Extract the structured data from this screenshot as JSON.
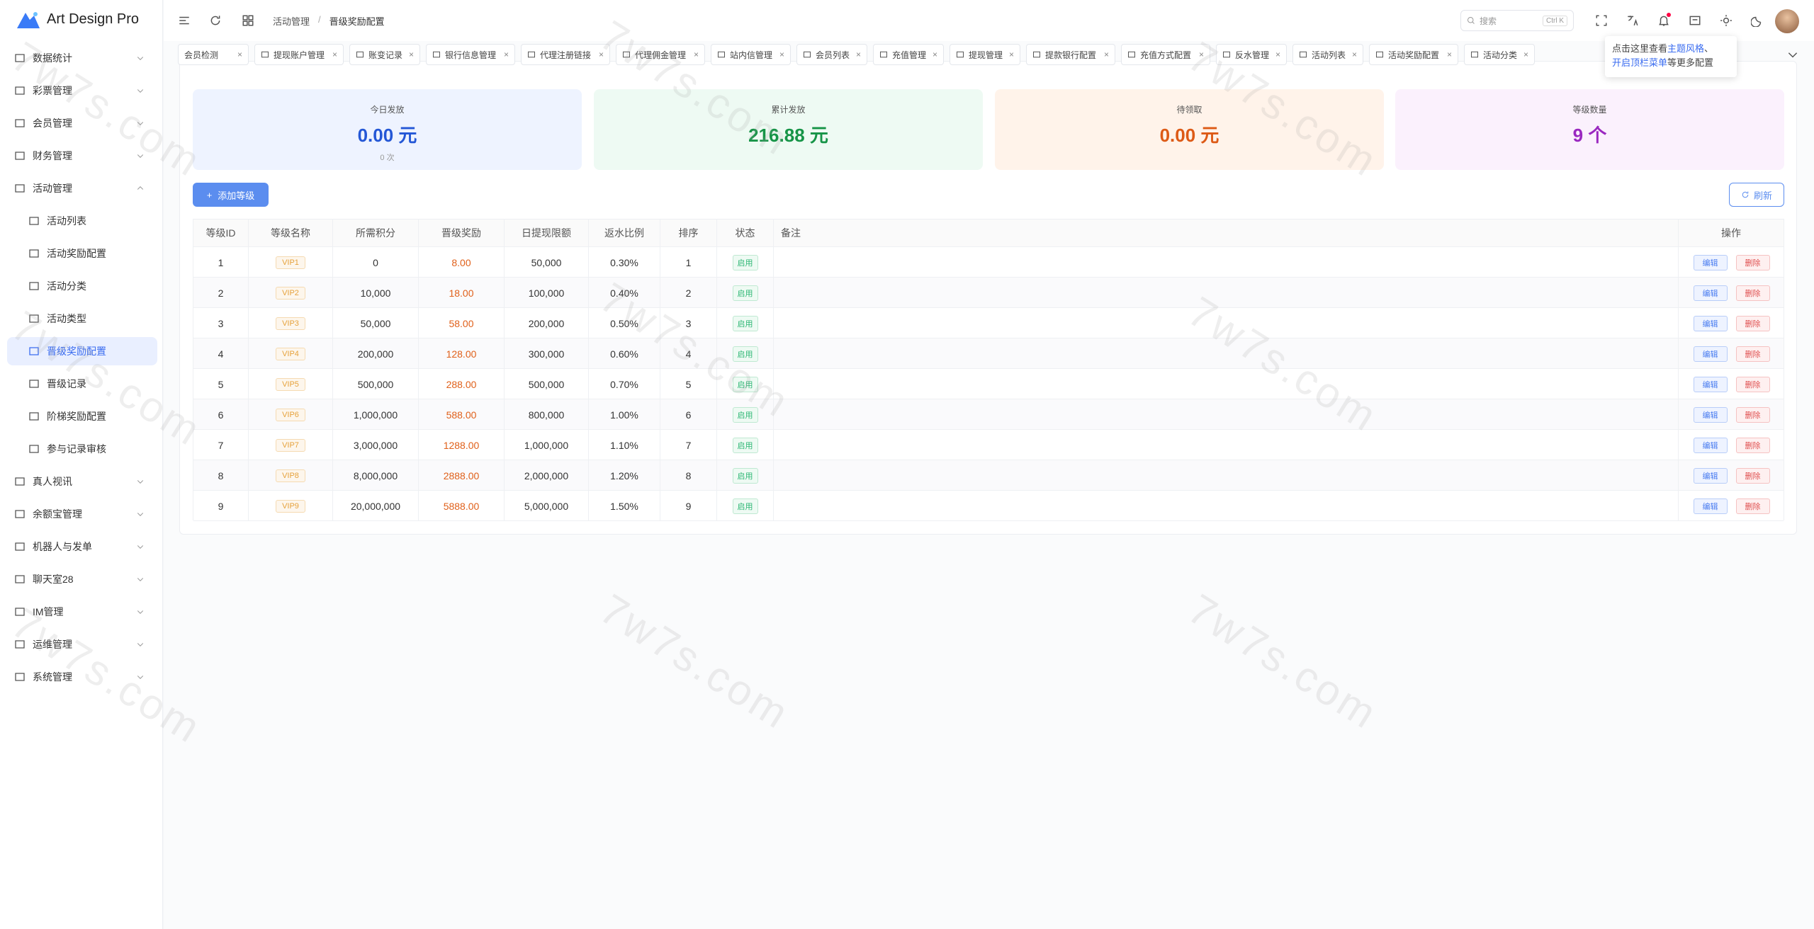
{
  "brand": "Art Design Pro",
  "sidebar": {
    "items": [
      {
        "label": "数据统计"
      },
      {
        "label": "彩票管理"
      },
      {
        "label": "会员管理"
      },
      {
        "label": "财务管理"
      },
      {
        "label": "活动管理",
        "children": [
          "活动列表",
          "活动奖励配置",
          "活动分类",
          "活动类型",
          "晋级奖励配置",
          "晋级记录",
          "阶梯奖励配置",
          "参与记录审核"
        ]
      },
      {
        "label": "真人视讯"
      },
      {
        "label": "余额宝管理"
      },
      {
        "label": "机器人与发单"
      },
      {
        "label": "聊天室28"
      },
      {
        "label": "IM管理"
      },
      {
        "label": "运维管理"
      },
      {
        "label": "系统管理"
      }
    ]
  },
  "header": {
    "breadcrumb": [
      "活动管理",
      "晋级奖励配置"
    ],
    "breadcrumb_sep": "/",
    "search": "搜索",
    "shortcut": "Ctrl K"
  },
  "tabs": [
    "会员检测",
    "提现账户管理",
    "账变记录",
    "银行信息管理",
    "代理注册链接",
    "代理佣金管理",
    "站内信管理",
    "会员列表",
    "充值管理",
    "提现管理",
    "提款银行配置",
    "充值方式配置",
    "反水管理",
    "活动列表",
    "活动奖励配置",
    "活动分类"
  ],
  "tooltip": {
    "line1": {
      "text": "点击这里查看",
      "link": "主题风格",
      "end": "、"
    },
    "line2": {
      "link": "开启顶栏菜单",
      "text": "等更多配置"
    }
  },
  "stats": [
    {
      "label": "今日发放",
      "value": "0.00 元",
      "sub": "0 次"
    },
    {
      "label": "累计发放",
      "value": "216.88 元"
    },
    {
      "label": "待领取",
      "value": "0.00 元"
    },
    {
      "label": "等级数量",
      "value": "9 个"
    }
  ],
  "toolbar": {
    "add": "添加等级",
    "add_icon": "+",
    "refresh": "刷新"
  },
  "table": {
    "columns": [
      "等级ID",
      "等级名称",
      "所需积分",
      "晋级奖励",
      "日提现限额",
      "返水比例",
      "排序",
      "状态",
      "备注",
      "操作"
    ],
    "rows": [
      [
        "1",
        "VIP1",
        "0",
        "8.00",
        "50,000",
        "0.30%",
        "1",
        "启用"
      ],
      [
        "2",
        "VIP2",
        "10,000",
        "18.00",
        "100,000",
        "0.40%",
        "2",
        "启用"
      ],
      [
        "3",
        "VIP3",
        "50,000",
        "58.00",
        "200,000",
        "0.50%",
        "3",
        "启用"
      ],
      [
        "4",
        "VIP4",
        "200,000",
        "128.00",
        "300,000",
        "0.60%",
        "4",
        "启用"
      ],
      [
        "5",
        "VIP5",
        "500,000",
        "288.00",
        "500,000",
        "0.70%",
        "5",
        "启用"
      ],
      [
        "6",
        "VIP6",
        "1,000,000",
        "588.00",
        "800,000",
        "1.00%",
        "6",
        "启用"
      ],
      [
        "7",
        "VIP7",
        "3,000,000",
        "1288.00",
        "1,000,000",
        "1.10%",
        "7",
        "启用"
      ],
      [
        "8",
        "VIP8",
        "8,000,000",
        "2888.00",
        "2,000,000",
        "1.20%",
        "8",
        "启用"
      ],
      [
        "9",
        "VIP9",
        "20,000,000",
        "5888.00",
        "5,000,000",
        "1.50%",
        "9",
        "启用"
      ]
    ],
    "actions": [
      "编辑",
      "删除"
    ]
  },
  "watermark": "7w7s.com"
}
